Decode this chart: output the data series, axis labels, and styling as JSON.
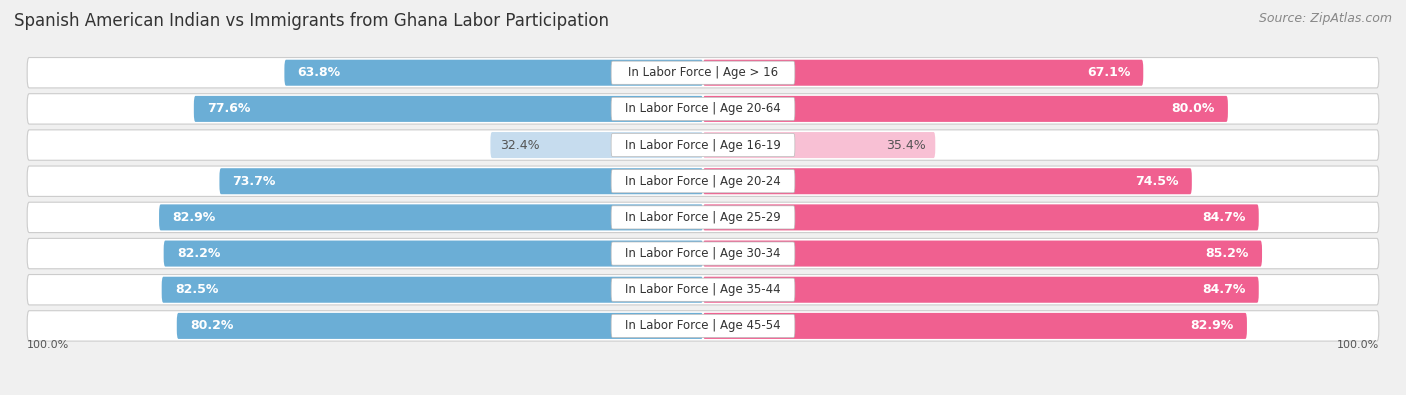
{
  "title": "Spanish American Indian vs Immigrants from Ghana Labor Participation",
  "source": "Source: ZipAtlas.com",
  "categories": [
    "In Labor Force | Age > 16",
    "In Labor Force | Age 20-64",
    "In Labor Force | Age 16-19",
    "In Labor Force | Age 20-24",
    "In Labor Force | Age 25-29",
    "In Labor Force | Age 30-34",
    "In Labor Force | Age 35-44",
    "In Labor Force | Age 45-54"
  ],
  "left_values": [
    63.8,
    77.6,
    32.4,
    73.7,
    82.9,
    82.2,
    82.5,
    80.2
  ],
  "right_values": [
    67.1,
    80.0,
    35.4,
    74.5,
    84.7,
    85.2,
    84.7,
    82.9
  ],
  "left_color": "#6baed6",
  "right_color": "#f06090",
  "left_color_light": "#c6dcee",
  "right_color_light": "#f8c0d4",
  "label_left": "Spanish American Indian",
  "label_right": "Immigrants from Ghana",
  "bg_color": "#f0f0f0",
  "bar_row_bg": "#e8e8e8",
  "max_value": 100.0,
  "title_fontsize": 12,
  "source_fontsize": 9,
  "value_fontsize": 9,
  "cat_fontsize": 8.5
}
